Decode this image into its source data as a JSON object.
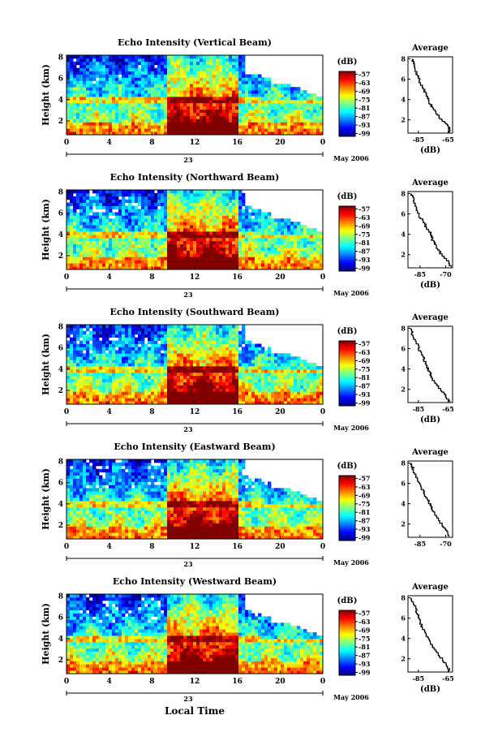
{
  "figure": {
    "date_label": "May 2006",
    "x_axis_title": "Local Time",
    "cbar_unit": "(dB)",
    "avg_title": "Average",
    "avg_xlabel": "(dB)"
  },
  "chart_data": [
    {
      "type": "heatmap",
      "title": "Echo Intensity (Vertical Beam)",
      "ylabel": "Height (km)",
      "x_ticks": [
        "0",
        "4",
        "8",
        "12",
        "16",
        "20",
        "0"
      ],
      "x_sub_label": "23",
      "y_ticks": [
        "2",
        "4",
        "6",
        "8"
      ],
      "ylim": [
        0.7,
        8.2
      ],
      "colorbar_ticks": [
        "-57",
        "-63",
        "-69",
        "-75",
        "-81",
        "-87",
        "-93",
        "-99"
      ],
      "colorbar_range": [
        -101,
        -55
      ],
      "avg_title": "Average",
      "avg_x_ticks": [
        "-85",
        "-65"
      ],
      "avg_xlim": [
        -92,
        -62
      ],
      "avg_profile": [
        [
          -63.5,
          0.8
        ],
        [
          -65,
          1.5
        ],
        [
          -70,
          2.2
        ],
        [
          -74,
          3.0
        ],
        [
          -77,
          3.6
        ],
        [
          -79,
          4.2
        ],
        [
          -81,
          5.0
        ],
        [
          -84,
          5.8
        ],
        [
          -86,
          6.6
        ],
        [
          -88,
          7.5
        ],
        [
          -89,
          8.0
        ]
      ]
    },
    {
      "type": "heatmap",
      "title": "Echo Intensity (Northward Beam)",
      "ylabel": "Height (km)",
      "x_ticks": [
        "0",
        "4",
        "8",
        "12",
        "16",
        "20",
        "0"
      ],
      "x_sub_label": "23",
      "y_ticks": [
        "2",
        "4",
        "6",
        "8"
      ],
      "ylim": [
        0.7,
        8.2
      ],
      "colorbar_ticks": [
        "-57",
        "-63",
        "-69",
        "-75",
        "-81",
        "-87",
        "-93",
        "-99"
      ],
      "colorbar_range": [
        -101,
        -55
      ],
      "avg_title": "Average",
      "avg_x_ticks": [
        "-85",
        "-70"
      ],
      "avg_xlim": [
        -92,
        -66
      ],
      "avg_profile": [
        [
          -67,
          0.8
        ],
        [
          -69,
          1.5
        ],
        [
          -73,
          2.2
        ],
        [
          -76,
          3.0
        ],
        [
          -78,
          3.6
        ],
        [
          -79,
          4.2
        ],
        [
          -82,
          5.0
        ],
        [
          -85,
          5.8
        ],
        [
          -87,
          6.6
        ],
        [
          -89,
          7.5
        ],
        [
          -90,
          8.0
        ]
      ]
    },
    {
      "type": "heatmap",
      "title": "Echo Intensity (Southward Beam)",
      "ylabel": "Height (km)",
      "x_ticks": [
        "0",
        "4",
        "8",
        "12",
        "16",
        "20",
        "0"
      ],
      "x_sub_label": "23",
      "y_ticks": [
        "2",
        "4",
        "6",
        "8"
      ],
      "ylim": [
        0.7,
        8.2
      ],
      "colorbar_ticks": [
        "-57",
        "-63",
        "-69",
        "-75",
        "-81",
        "-87",
        "-93",
        "-99"
      ],
      "colorbar_range": [
        -101,
        -55
      ],
      "avg_title": "Average",
      "avg_x_ticks": [
        "-85",
        "-65"
      ],
      "avg_xlim": [
        -92,
        -62
      ],
      "avg_profile": [
        [
          -64,
          0.8
        ],
        [
          -67,
          1.5
        ],
        [
          -71,
          2.2
        ],
        [
          -75,
          3.0
        ],
        [
          -77,
          3.6
        ],
        [
          -79,
          4.2
        ],
        [
          -81,
          5.0
        ],
        [
          -84,
          5.8
        ],
        [
          -86,
          6.6
        ],
        [
          -89,
          7.5
        ],
        [
          -90,
          8.0
        ]
      ]
    },
    {
      "type": "heatmap",
      "title": "Echo Intensity (Eastward Beam)",
      "ylabel": "Height (km)",
      "x_ticks": [
        "0",
        "4",
        "8",
        "12",
        "16",
        "20",
        "0"
      ],
      "x_sub_label": "23",
      "y_ticks": [
        "2",
        "4",
        "6",
        "8"
      ],
      "ylim": [
        0.7,
        8.2
      ],
      "colorbar_ticks": [
        "-57",
        "-63",
        "-69",
        "-75",
        "-81",
        "-87",
        "-93",
        "-99"
      ],
      "colorbar_range": [
        -101,
        -55
      ],
      "avg_title": "Average",
      "avg_x_ticks": [
        "-85",
        "-70"
      ],
      "avg_xlim": [
        -92,
        -66
      ],
      "avg_profile": [
        [
          -68,
          0.8
        ],
        [
          -70,
          1.5
        ],
        [
          -73,
          2.2
        ],
        [
          -76,
          3.0
        ],
        [
          -78,
          3.6
        ],
        [
          -80,
          4.2
        ],
        [
          -82,
          5.0
        ],
        [
          -85,
          5.8
        ],
        [
          -87,
          6.6
        ],
        [
          -89,
          7.5
        ],
        [
          -90,
          8.0
        ]
      ]
    },
    {
      "type": "heatmap",
      "title": "Echo Intensity (Westward Beam)",
      "ylabel": "Height (km)",
      "x_ticks": [
        "0",
        "4",
        "8",
        "12",
        "16",
        "20",
        "0"
      ],
      "x_sub_label": "23",
      "y_ticks": [
        "2",
        "4",
        "6",
        "8"
      ],
      "ylim": [
        0.7,
        8.2
      ],
      "colorbar_ticks": [
        "-57",
        "-63",
        "-69",
        "-75",
        "-81",
        "-87",
        "-93",
        "-99"
      ],
      "colorbar_range": [
        -101,
        -55
      ],
      "avg_title": "Average",
      "avg_x_ticks": [
        "-85",
        "-65"
      ],
      "avg_xlim": [
        -92,
        -62
      ],
      "avg_profile": [
        [
          -64,
          0.8
        ],
        [
          -66,
          1.5
        ],
        [
          -70,
          2.2
        ],
        [
          -74,
          3.0
        ],
        [
          -77,
          3.6
        ],
        [
          -79,
          4.2
        ],
        [
          -82,
          5.0
        ],
        [
          -84,
          5.8
        ],
        [
          -86,
          6.6
        ],
        [
          -88,
          7.5
        ],
        [
          -90,
          8.0
        ]
      ]
    }
  ]
}
